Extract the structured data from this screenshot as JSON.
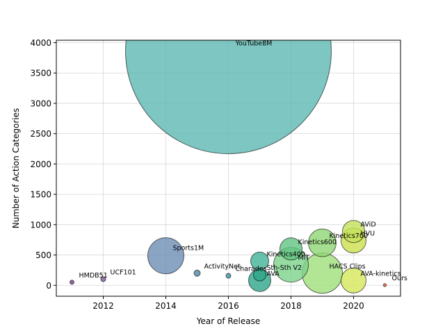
{
  "chart_data": {
    "type": "scatter",
    "xlabel": "Year of Release",
    "ylabel": "Number of Action Categories",
    "xlim": [
      2010.5,
      2021.5
    ],
    "ylim": [
      -180,
      4040
    ],
    "xticks": [
      2012,
      2014,
      2016,
      2018,
      2020
    ],
    "yticks": [
      0,
      500,
      1000,
      1500,
      2000,
      2500,
      3000,
      3500,
      4000
    ],
    "grid": true,
    "points": [
      {
        "name": "YouTube8M",
        "x": 2016,
        "y": 3862,
        "r": 148,
        "color": "#5cb8b2",
        "dx": 2,
        "dy": -8
      },
      {
        "name": "Sports1M",
        "x": 2014,
        "y": 487,
        "r": 26,
        "color": "#6d8db5",
        "dx": 2,
        "dy": -8
      },
      {
        "name": "HMDB51",
        "x": 2011,
        "y": 51,
        "r": 3,
        "color": "#7e3f8c",
        "dx": 2,
        "dy": -7
      },
      {
        "name": "UCF101",
        "x": 2012,
        "y": 101,
        "r": 3.5,
        "color": "#7b5a9c",
        "dx": 2,
        "dy": -7
      },
      {
        "name": "ActivityNet",
        "x": 2015,
        "y": 200,
        "r": 4.5,
        "color": "#4c86a0",
        "dx": 2,
        "dy": -7
      },
      {
        "name": "Charades",
        "x": 2016,
        "y": 157,
        "r": 3.5,
        "color": "#3c95a0",
        "dx": 2,
        "dy": -7
      },
      {
        "name": "Kinetics400",
        "x": 2017,
        "y": 400,
        "r": 13,
        "color": "#42b196",
        "dx": 2,
        "dy": -7
      },
      {
        "name": "Sth-Sth V2",
        "x": 2017,
        "y": 174,
        "r": 9,
        "color": "#2ea58a",
        "dx": 2,
        "dy": -7
      },
      {
        "name": "AVA",
        "x": 2017,
        "y": 80,
        "r": 16,
        "color": "#2ea58a",
        "dx": 2,
        "dy": -7
      },
      {
        "name": "Kinetics600",
        "x": 2018,
        "y": 600,
        "r": 16,
        "color": "#62c382",
        "dx": 2,
        "dy": -7
      },
      {
        "name": "MiT",
        "x": 2018,
        "y": 339,
        "r": 25,
        "color": "#7cd28b",
        "dx": 2,
        "dy": -7
      },
      {
        "name": "Kinetics700",
        "x": 2019,
        "y": 700,
        "r": 20,
        "color": "#8fd672",
        "dx": 2,
        "dy": -7
      },
      {
        "name": "HACS Clips",
        "x": 2019,
        "y": 200,
        "r": 29,
        "color": "#9fe07a",
        "dx": 2,
        "dy": -7
      },
      {
        "name": "AViD",
        "x": 2020,
        "y": 887,
        "r": 16,
        "color": "#c4e25a",
        "dx": 2,
        "dy": -7
      },
      {
        "name": "HVU",
        "x": 2020,
        "y": 739,
        "r": 18,
        "color": "#cde04e",
        "dx": 2,
        "dy": -7
      },
      {
        "name": "AVA-kinetics",
        "x": 2020,
        "y": 80,
        "r": 18,
        "color": "#d6e75a",
        "dx": 2,
        "dy": -7
      },
      {
        "name": "Ours",
        "x": 2021,
        "y": 3,
        "r": 2.2,
        "color": "#e8522a",
        "dx": 2,
        "dy": -7
      }
    ]
  }
}
